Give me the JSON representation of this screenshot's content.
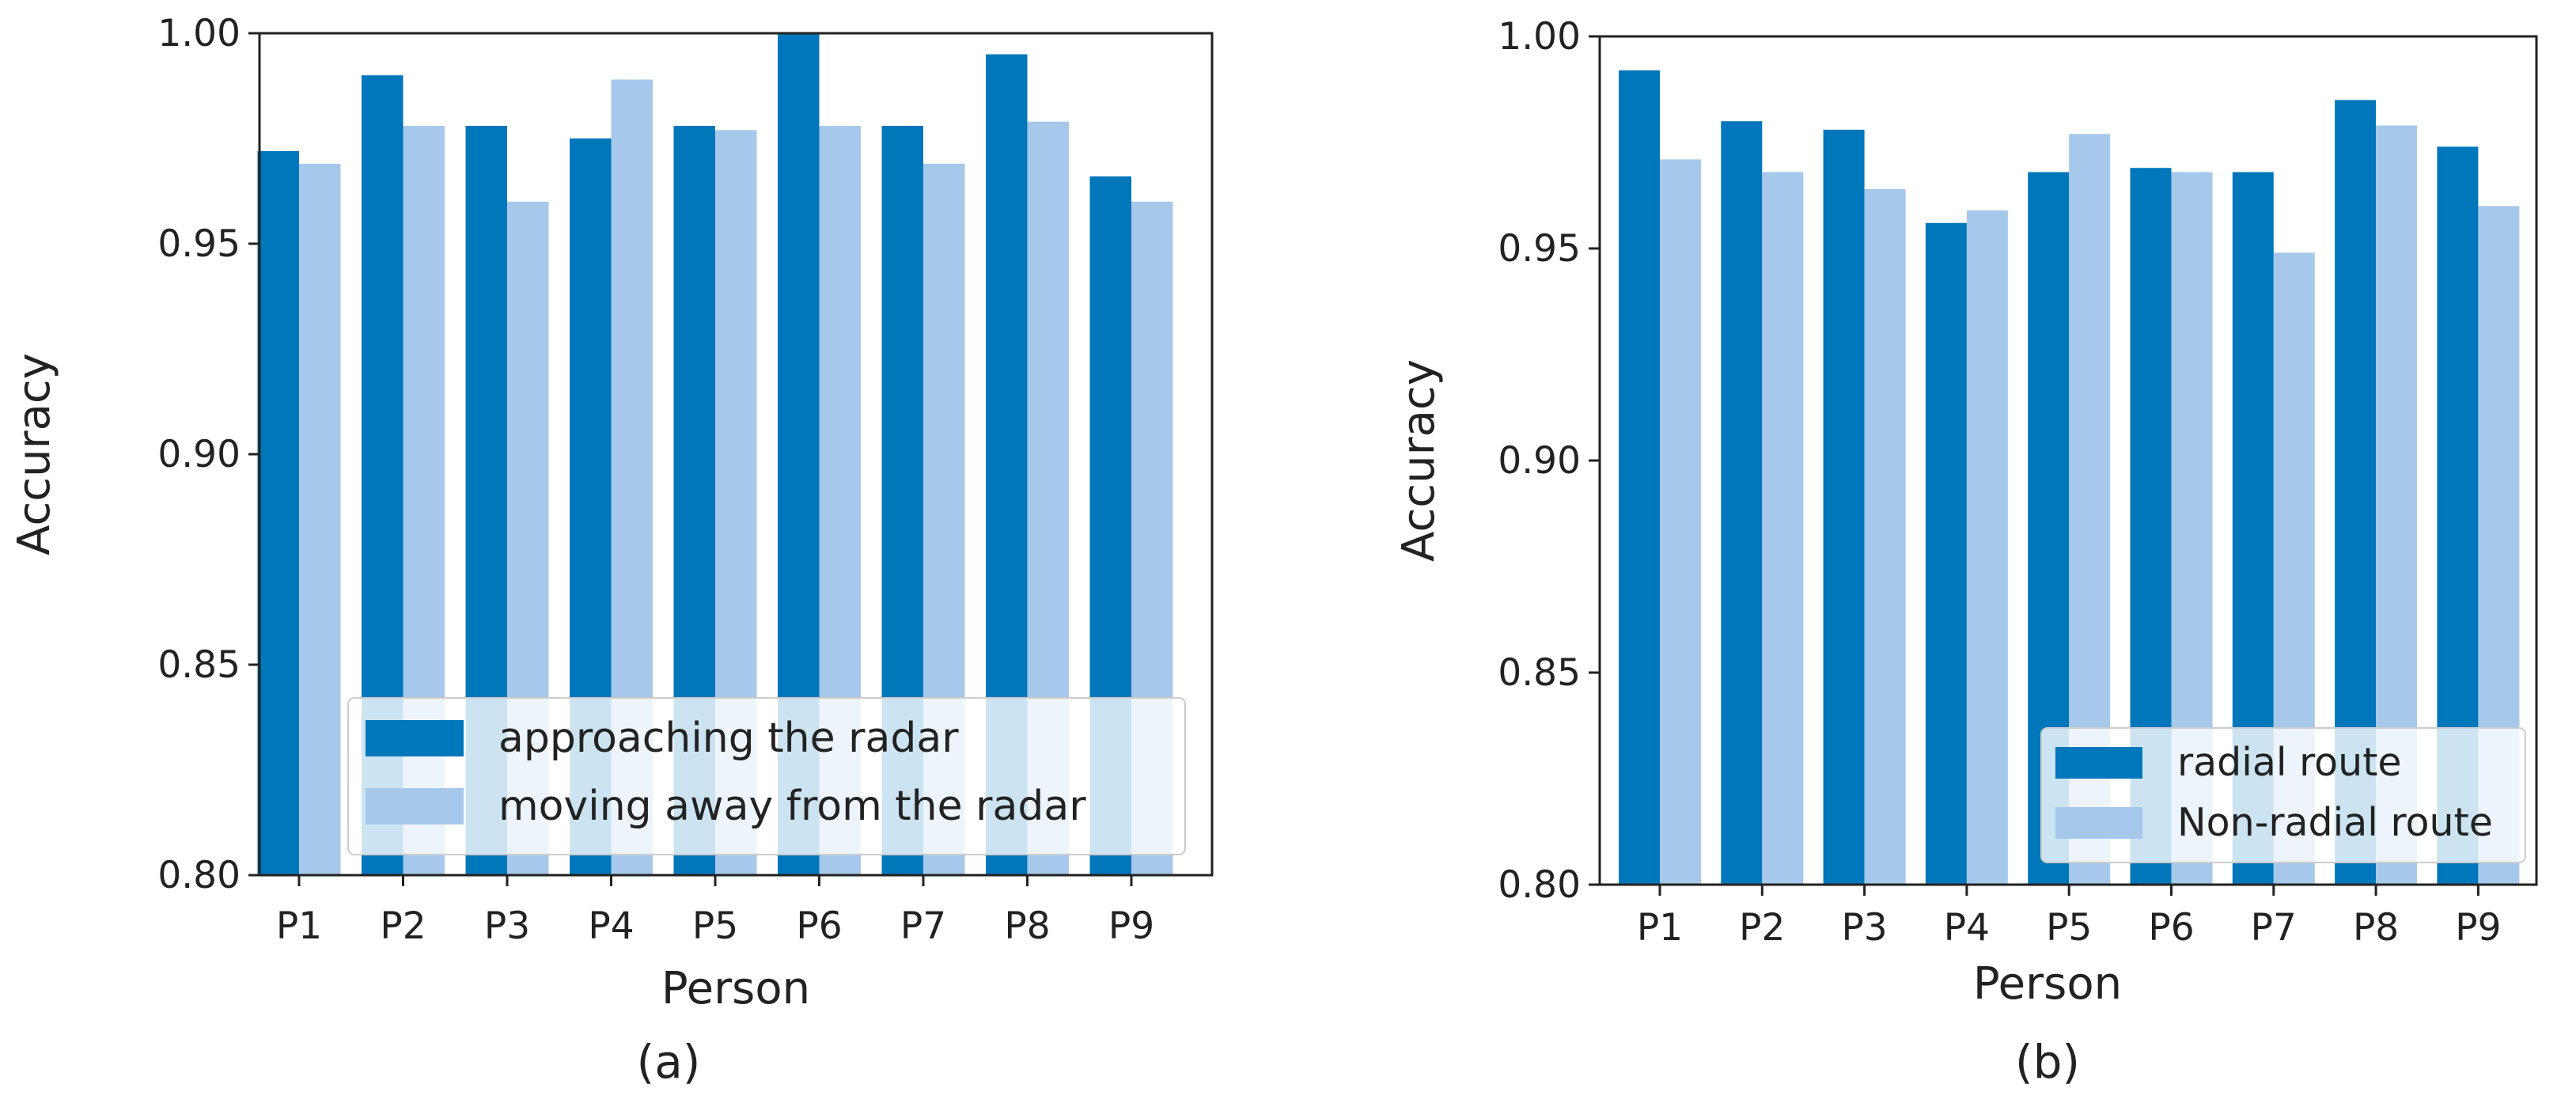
{
  "colors": {
    "dark_bar": "#0077bb",
    "light_bar": "#a6c8eb",
    "axis": "#222222"
  },
  "chart_data": [
    {
      "type": "bar",
      "id": "a",
      "caption": "(a)",
      "xlabel": "Person",
      "ylabel": "Accuracy",
      "ylim": [
        0.8,
        1.0
      ],
      "yticks": [
        "0.80",
        "0.85",
        "0.90",
        "0.95",
        "1.00"
      ],
      "ytick_values": [
        0.8,
        0.85,
        0.9,
        0.95,
        1.0
      ],
      "categories": [
        "P1",
        "P2",
        "P3",
        "P4",
        "P5",
        "P6",
        "P7",
        "P8",
        "P9"
      ],
      "legend_position": "lower-right",
      "series": [
        {
          "name": "approaching the radar",
          "color": "#0077bb",
          "values": [
            0.972,
            0.99,
            0.978,
            0.975,
            0.978,
            1.0,
            0.978,
            0.995,
            0.966
          ]
        },
        {
          "name": "moving away from the radar",
          "color": "#a6c8eb",
          "values": [
            0.969,
            0.978,
            0.96,
            0.989,
            0.977,
            0.978,
            0.969,
            0.979,
            0.96
          ]
        }
      ]
    },
    {
      "type": "bar",
      "id": "b",
      "caption": "(b)",
      "xlabel": "Person",
      "ylabel": "Accuracy",
      "ylim": [
        0.8,
        1.0
      ],
      "yticks": [
        "0.80",
        "0.85",
        "0.90",
        "0.95",
        "1.00"
      ],
      "ytick_values": [
        0.8,
        0.85,
        0.9,
        0.95,
        1.0
      ],
      "categories": [
        "P1",
        "P2",
        "P3",
        "P4",
        "P5",
        "P6",
        "P7",
        "P8",
        "P9"
      ],
      "legend_position": "lower-right",
      "series": [
        {
          "name": "radial route",
          "color": "#0077bb",
          "values": [
            0.992,
            0.98,
            0.978,
            0.956,
            0.968,
            0.969,
            0.968,
            0.985,
            0.974
          ]
        },
        {
          "name": "Non-radial route",
          "color": "#a6c8eb",
          "values": [
            0.971,
            0.968,
            0.964,
            0.959,
            0.977,
            0.968,
            0.949,
            0.979,
            0.96
          ]
        }
      ]
    }
  ]
}
